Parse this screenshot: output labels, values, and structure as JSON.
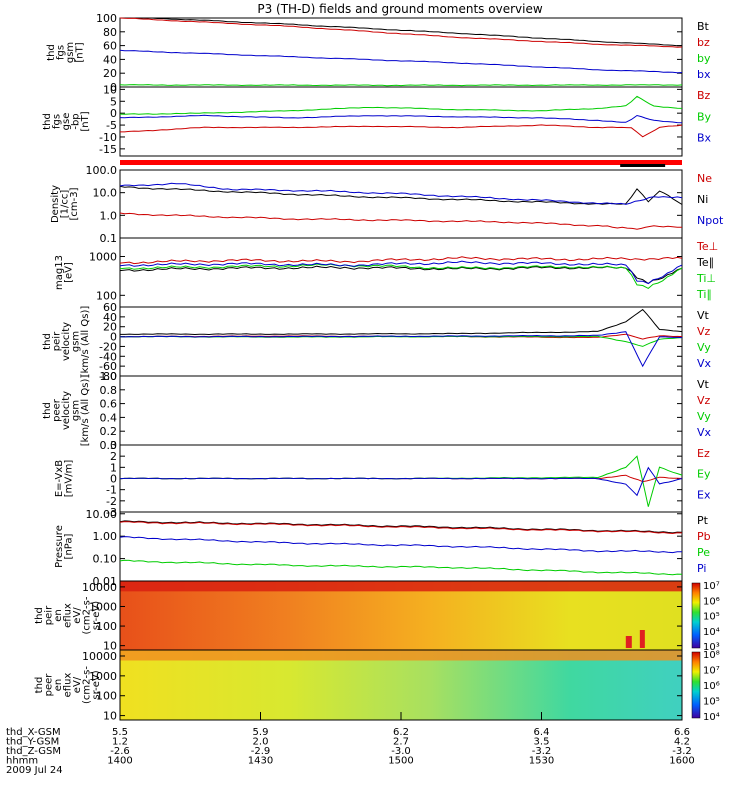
{
  "title": "P3 (TH-D) fields and ground moments overview",
  "chart_data": [
    {
      "type": "line",
      "ylabel": [
        "thd",
        "fgs",
        "gsm",
        "[nT]"
      ],
      "ylim": [
        0,
        100
      ],
      "scale": "linear",
      "yticks": [
        0,
        20,
        40,
        60,
        80,
        100
      ],
      "legend": [
        {
          "name": "Bt",
          "color": "#000000"
        },
        {
          "name": "bz",
          "color": "#cc0000"
        },
        {
          "name": "by",
          "color": "#00cc00"
        },
        {
          "name": "bx",
          "color": "#0000cc"
        }
      ],
      "series": [
        {
          "name": "Bt",
          "color": "#000000",
          "t": [
            0,
            0.3,
            0.6,
            0.85,
            1.0
          ],
          "y": [
            102,
            91,
            78,
            66,
            60
          ]
        },
        {
          "name": "bz",
          "color": "#cc0000",
          "t": [
            0,
            0.3,
            0.6,
            0.85,
            1.0
          ],
          "y": [
            100,
            88,
            72,
            62,
            58
          ]
        },
        {
          "name": "by",
          "color": "#00cc00",
          "t": [
            0,
            0.5,
            1.0
          ],
          "y": [
            3,
            2.5,
            3
          ]
        },
        {
          "name": "bx",
          "color": "#0000cc",
          "t": [
            0,
            0.3,
            0.6,
            0.85,
            1.0
          ],
          "y": [
            53,
            44,
            35,
            25,
            21
          ]
        }
      ]
    },
    {
      "type": "line",
      "ylabel": [
        "thd",
        "fgs",
        "gse",
        "-bp",
        "[nT]"
      ],
      "ylim": [
        -18,
        11
      ],
      "scale": "linear",
      "yticks": [
        -15,
        -10,
        -5,
        0,
        5,
        10
      ],
      "legend": [
        {
          "name": "Bz",
          "color": "#cc0000"
        },
        {
          "name": "By",
          "color": "#00cc00"
        },
        {
          "name": "Bx",
          "color": "#0000cc"
        }
      ],
      "series": [
        {
          "name": "Bz",
          "color": "#cc0000",
          "t": [
            0,
            0.15,
            0.3,
            0.45,
            0.6,
            0.75,
            0.85,
            0.91,
            0.93,
            0.96,
            1.0
          ],
          "y": [
            -8,
            -6,
            -6,
            -5.5,
            -6,
            -5,
            -6,
            -6,
            -10,
            -6,
            -5
          ]
        },
        {
          "name": "By",
          "color": "#00cc00",
          "t": [
            0,
            0.15,
            0.3,
            0.45,
            0.6,
            0.75,
            0.85,
            0.9,
            0.92,
            0.95,
            1.0
          ],
          "y": [
            -0.5,
            0,
            1,
            2.5,
            1.5,
            1,
            2,
            3,
            7,
            3,
            2
          ]
        },
        {
          "name": "Bx",
          "color": "#0000cc",
          "t": [
            0,
            0.15,
            0.3,
            0.45,
            0.6,
            0.75,
            0.85,
            0.9,
            0.92,
            0.95,
            1.0
          ],
          "y": [
            -2,
            -1,
            -2,
            -1,
            -1.5,
            -2,
            -3,
            -4,
            -1,
            -3,
            -4
          ]
        }
      ]
    },
    {
      "type": "line",
      "ylabel": [
        "Density",
        "[1/cc]",
        "[cm-3]"
      ],
      "ylim": [
        0.1,
        100
      ],
      "scale": "log",
      "yticks": [
        0.1,
        1.0,
        10.0,
        100.0
      ],
      "ytick_labels": [
        "0.1",
        "1.0",
        "10.0",
        "100.0"
      ],
      "legend": [
        {
          "name": "Ne",
          "color": "#cc0000"
        },
        {
          "name": "Ni",
          "color": "#000000"
        },
        {
          "name": "Npot",
          "color": "#0000cc"
        }
      ],
      "series": [
        {
          "name": "Ne",
          "color": "#cc0000",
          "t": [
            0,
            0.15,
            0.3,
            0.5,
            0.7,
            0.85,
            0.92,
            0.95,
            1.0
          ],
          "y": [
            1.2,
            0.9,
            0.7,
            0.6,
            0.5,
            0.35,
            0.25,
            0.35,
            0.3
          ]
        },
        {
          "name": "Ni",
          "color": "#000000",
          "t": [
            0,
            0.2,
            0.4,
            0.6,
            0.8,
            0.9,
            0.92,
            0.94,
            0.96,
            1.0
          ],
          "y": [
            18,
            11,
            7,
            5,
            3.5,
            3,
            15,
            4,
            12,
            3
          ]
        },
        {
          "name": "Npot",
          "color": "#0000cc",
          "t": [
            0,
            0.1,
            0.2,
            0.35,
            0.5,
            0.65,
            0.8,
            0.9,
            0.95,
            1.0
          ],
          "y": [
            20,
            25,
            14,
            12,
            9,
            6,
            4,
            3,
            7,
            6
          ]
        }
      ]
    },
    {
      "type": "line",
      "ylabel": [
        "mag13",
        "[eV]"
      ],
      "ylim": [
        50,
        3000
      ],
      "scale": "log",
      "yticks": [
        100,
        1000
      ],
      "ytick_labels": [
        "100",
        "1000"
      ],
      "legend": [
        {
          "name": "Te⊥",
          "color": "#cc0000"
        },
        {
          "name": "Te∥",
          "color": "#000000"
        },
        {
          "name": "Ti⊥",
          "color": "#00cc00"
        },
        {
          "name": "Ti∥",
          "color": "#00cc00"
        }
      ],
      "series": [
        {
          "name": "Te⊥",
          "color": "#cc0000",
          "t": [
            0,
            0.2,
            0.4,
            0.6,
            0.8,
            1.0
          ],
          "y": [
            700,
            800,
            750,
            900,
            850,
            900
          ]
        },
        {
          "name": "Te∥",
          "color": "#000000",
          "t": [
            0,
            0.2,
            0.4,
            0.6,
            0.8,
            0.9,
            0.92,
            0.94,
            1.0
          ],
          "y": [
            450,
            500,
            520,
            480,
            520,
            500,
            300,
            200,
            500
          ]
        },
        {
          "name": "Ti⊥",
          "color": "#00cc00",
          "t": [
            0,
            0.2,
            0.4,
            0.6,
            0.8,
            0.9,
            0.92,
            0.94,
            1.0
          ],
          "y": [
            500,
            550,
            600,
            500,
            550,
            500,
            200,
            150,
            500
          ]
        },
        {
          "name": "Ti∥",
          "color": "#0000cc",
          "t": [
            0,
            0.2,
            0.4,
            0.6,
            0.8,
            0.9,
            0.92,
            0.94,
            1.0
          ],
          "y": [
            600,
            650,
            600,
            700,
            650,
            600,
            250,
            200,
            600
          ]
        }
      ]
    },
    {
      "type": "line",
      "ylabel": [
        "thd",
        "peir",
        "velocity",
        "gsm",
        "[km/s (All Qs)]"
      ],
      "ylim": [
        -80,
        60
      ],
      "scale": "linear",
      "yticks": [
        -80,
        -60,
        -40,
        -20,
        0,
        20,
        40,
        60
      ],
      "legend": [
        {
          "name": "Vt",
          "color": "#000000"
        },
        {
          "name": "Vz",
          "color": "#cc0000"
        },
        {
          "name": "Vy",
          "color": "#00cc00"
        },
        {
          "name": "Vx",
          "color": "#0000cc"
        }
      ],
      "series": [
        {
          "name": "Vt",
          "color": "#000000",
          "t": [
            0,
            0.3,
            0.6,
            0.85,
            0.9,
            0.93,
            0.96,
            1.0
          ],
          "y": [
            5,
            5,
            6,
            10,
            30,
            55,
            15,
            10
          ]
        },
        {
          "name": "Vz",
          "color": "#cc0000",
          "t": [
            0,
            0.3,
            0.6,
            0.85,
            0.9,
            0.93,
            0.96,
            1.0
          ],
          "y": [
            0,
            1,
            0,
            -2,
            5,
            -5,
            2,
            0
          ]
        },
        {
          "name": "Vy",
          "color": "#00cc00",
          "t": [
            0,
            0.3,
            0.6,
            0.85,
            0.9,
            0.93,
            0.96,
            1.0
          ],
          "y": [
            0,
            -1,
            0,
            0,
            -10,
            -20,
            -5,
            -2
          ]
        },
        {
          "name": "Vx",
          "color": "#0000cc",
          "t": [
            0,
            0.3,
            0.6,
            0.85,
            0.9,
            0.93,
            0.96,
            1.0
          ],
          "y": [
            0,
            0,
            1,
            2,
            10,
            -60,
            0,
            -2
          ]
        }
      ]
    },
    {
      "type": "line",
      "ylabel": [
        "thd",
        "peer",
        "velocity",
        "gsm",
        "[km/s (All Qs)]"
      ],
      "ylim": [
        0,
        1
      ],
      "scale": "linear",
      "yticks": [
        0.0,
        0.2,
        0.4,
        0.6,
        0.8,
        1.0
      ],
      "ytick_labels": [
        "0.0",
        "0.2",
        "0.4",
        "0.6",
        "0.8",
        "1.0"
      ],
      "legend": [
        {
          "name": "Vt",
          "color": "#000000"
        },
        {
          "name": "Vz",
          "color": "#cc0000"
        },
        {
          "name": "Vy",
          "color": "#00cc00"
        },
        {
          "name": "Vx",
          "color": "#0000cc"
        }
      ],
      "series": []
    },
    {
      "type": "line",
      "ylabel": [
        "E=-VxB",
        "[mV/m]"
      ],
      "ylim": [
        -3,
        3
      ],
      "scale": "linear",
      "yticks": [
        -3,
        -2,
        -1,
        0,
        1,
        2,
        3
      ],
      "legend": [
        {
          "name": "Ez",
          "color": "#cc0000"
        },
        {
          "name": "Ey",
          "color": "#00cc00"
        },
        {
          "name": "Ex",
          "color": "#0000cc"
        }
      ],
      "series": [
        {
          "name": "Ez",
          "color": "#cc0000",
          "t": [
            0,
            0.5,
            0.85,
            0.9,
            0.93,
            0.96,
            1.0
          ],
          "y": [
            0,
            0,
            0,
            0.3,
            -0.3,
            0.1,
            0
          ]
        },
        {
          "name": "Ey",
          "color": "#00cc00",
          "t": [
            0,
            0.5,
            0.85,
            0.9,
            0.92,
            0.94,
            0.96,
            1.0
          ],
          "y": [
            0,
            0,
            0.1,
            1,
            2,
            -2.5,
            1,
            0.3
          ]
        },
        {
          "name": "Ex",
          "color": "#0000cc",
          "t": [
            0,
            0.5,
            0.85,
            0.9,
            0.92,
            0.94,
            0.96,
            1.0
          ],
          "y": [
            0,
            0,
            0,
            -0.5,
            -1.5,
            1,
            -0.5,
            0
          ]
        }
      ]
    },
    {
      "type": "line",
      "ylabel": [
        "Pressure",
        "[nPa]"
      ],
      "ylim": [
        0.01,
        12
      ],
      "scale": "log",
      "yticks": [
        0.01,
        0.1,
        1.0,
        10.0
      ],
      "ytick_labels": [
        "0.01",
        "0.10",
        "1.00",
        "10.00"
      ],
      "legend": [
        {
          "name": "Pt",
          "color": "#000000"
        },
        {
          "name": "Pb",
          "color": "#cc0000"
        },
        {
          "name": "Pe",
          "color": "#00cc00"
        },
        {
          "name": "Pi",
          "color": "#0000cc"
        }
      ],
      "series": [
        {
          "name": "Pt",
          "color": "#000000",
          "t": [
            0,
            0.3,
            0.6,
            0.85,
            1.0
          ],
          "y": [
            4.5,
            3.5,
            2.5,
            1.8,
            1.5
          ]
        },
        {
          "name": "Pb",
          "color": "#cc0000",
          "t": [
            0,
            0.3,
            0.6,
            0.85,
            1.0
          ],
          "y": [
            4.2,
            3.3,
            2.3,
            1.7,
            1.4
          ]
        },
        {
          "name": "Pe",
          "color": "#00cc00",
          "t": [
            0,
            0.3,
            0.6,
            0.85,
            1.0
          ],
          "y": [
            0.08,
            0.05,
            0.04,
            0.025,
            0.02
          ]
        },
        {
          "name": "Pi",
          "color": "#0000cc",
          "t": [
            0,
            0.3,
            0.6,
            0.85,
            1.0
          ],
          "y": [
            0.9,
            0.5,
            0.35,
            0.22,
            0.2
          ]
        }
      ]
    },
    {
      "type": "heatmap",
      "ylabel": [
        "thd",
        "peir",
        "en",
        "eflux",
        "eV/",
        "(cm2-s-",
        "sr-eV)"
      ],
      "ylim": [
        6,
        20000
      ],
      "scale": "log",
      "yticks": [
        10,
        100,
        1000,
        10000
      ],
      "ytick_labels": [
        "10",
        "100",
        "1000",
        "10000"
      ],
      "colorbar": {
        "ticks": [
          "10³",
          "10⁴",
          "10⁵",
          "10⁶",
          "10⁷"
        ]
      }
    },
    {
      "type": "heatmap",
      "ylabel": [
        "thd",
        "peer",
        "en",
        "eflux",
        "eV/",
        "(cm2-s-",
        "sr-eV)"
      ],
      "ylim": [
        6,
        20000
      ],
      "scale": "log",
      "yticks": [
        10,
        100,
        1000,
        10000
      ],
      "ytick_labels": [
        "10",
        "100",
        "1000",
        "10000"
      ],
      "colorbar": {
        "ticks": [
          "10⁴",
          "10⁵",
          "10⁶",
          "10⁷",
          "10⁸"
        ]
      }
    }
  ],
  "xaxis": {
    "rows": [
      {
        "label": "thd_X-GSM",
        "values": [
          "5.5",
          "5.9",
          "6.2",
          "6.4",
          "6.6"
        ]
      },
      {
        "label": "thd_Y-GSM",
        "values": [
          "1.2",
          "2.0",
          "2.7",
          "3.5",
          "4.2"
        ]
      },
      {
        "label": "thd_Z-GSM",
        "values": [
          "-2.6",
          "-2.9",
          "-3.0",
          "-3.2",
          "-3.2"
        ]
      },
      {
        "label": "hhmm",
        "values": [
          "1400",
          "1430",
          "1500",
          "1530",
          "1600"
        ]
      }
    ],
    "date": "2009 Jul 24"
  }
}
